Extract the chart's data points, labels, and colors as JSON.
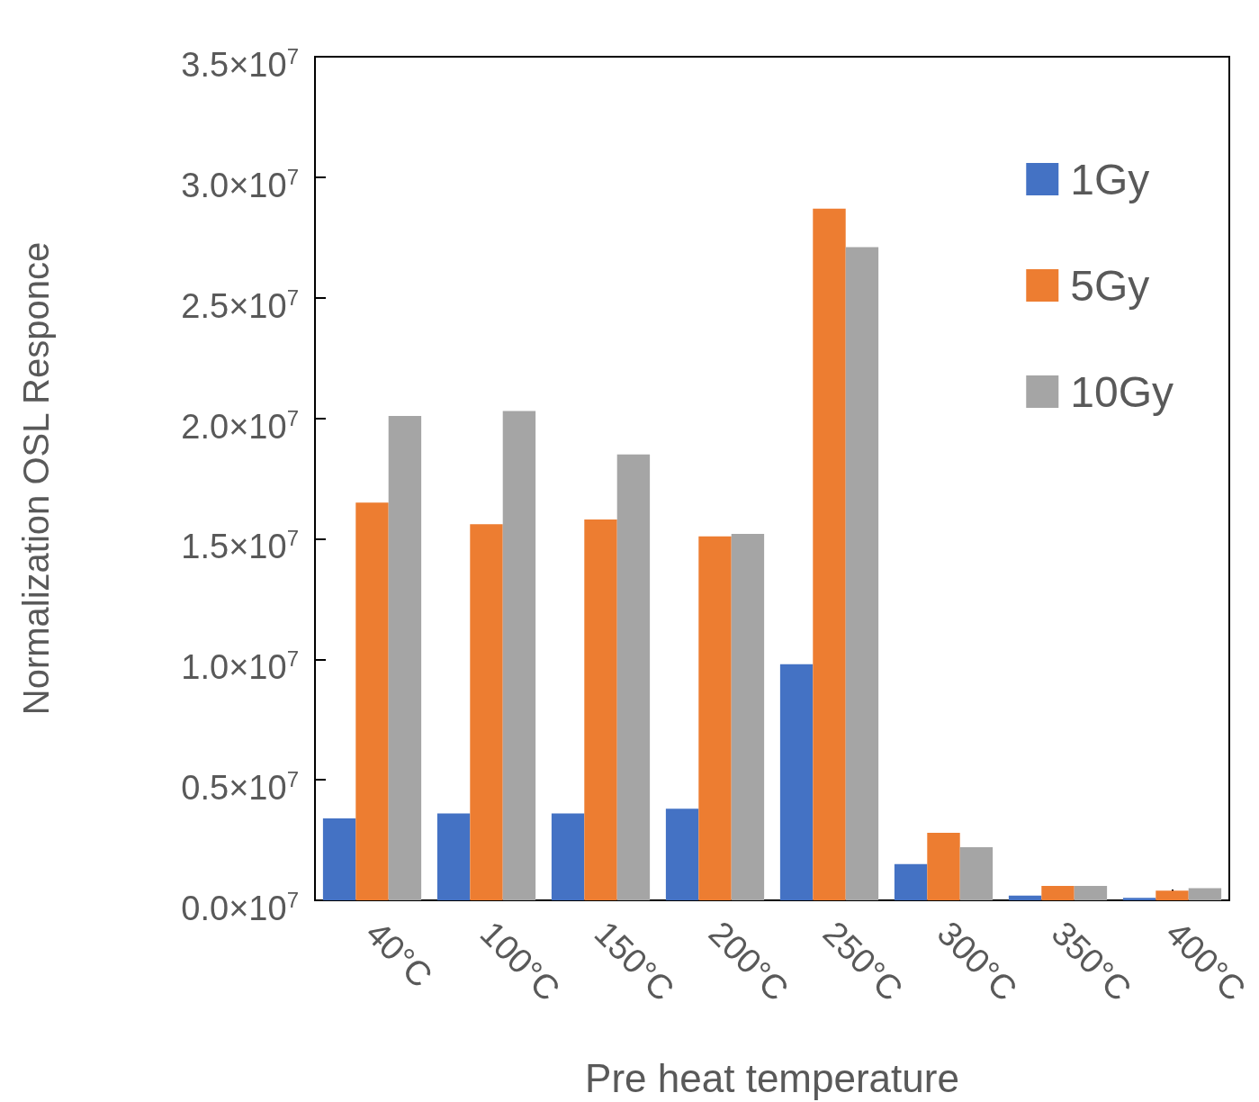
{
  "chart_data": {
    "type": "bar",
    "xlabel": "Pre heat temperature",
    "ylabel": "Normalization OSL Responce",
    "categories": [
      "40°C",
      "100°C",
      "150°C",
      "200°C",
      "250°C",
      "300°C",
      "350°C",
      "400°C"
    ],
    "series": [
      {
        "name": "1Gy",
        "color": "#4472c4",
        "values": [
          3400000,
          3600000,
          3600000,
          3800000,
          9800000,
          1500000,
          200000,
          100000
        ]
      },
      {
        "name": "5Gy",
        "color": "#ed7d31",
        "values": [
          16500000,
          15600000,
          15800000,
          15100000,
          28700000,
          2800000,
          600000,
          400000
        ]
      },
      {
        "name": "10Gy",
        "color": "#a5a5a5",
        "values": [
          20100000,
          20300000,
          18500000,
          15200000,
          27100000,
          2200000,
          600000,
          500000
        ]
      }
    ],
    "ylim": [
      0,
      35000000
    ],
    "yticks": [
      {
        "value": 0,
        "label": "0.0×10$^{7}$"
      },
      {
        "value": 5000000,
        "label": "0.5×10$^{7}$"
      },
      {
        "value": 10000000,
        "label": "1.0×10$^{7}$"
      },
      {
        "value": 15000000,
        "label": "1.5×10$^{7}$"
      },
      {
        "value": 20000000,
        "label": "2.0×10$^{7}$"
      },
      {
        "value": 25000000,
        "label": "2.5×10$^{7}$"
      },
      {
        "value": 30000000,
        "label": "3.0×10$^{7}$"
      },
      {
        "value": 35000000,
        "label": "3.5×10$^{7}$"
      }
    ],
    "grid": false,
    "legend": "top right"
  }
}
